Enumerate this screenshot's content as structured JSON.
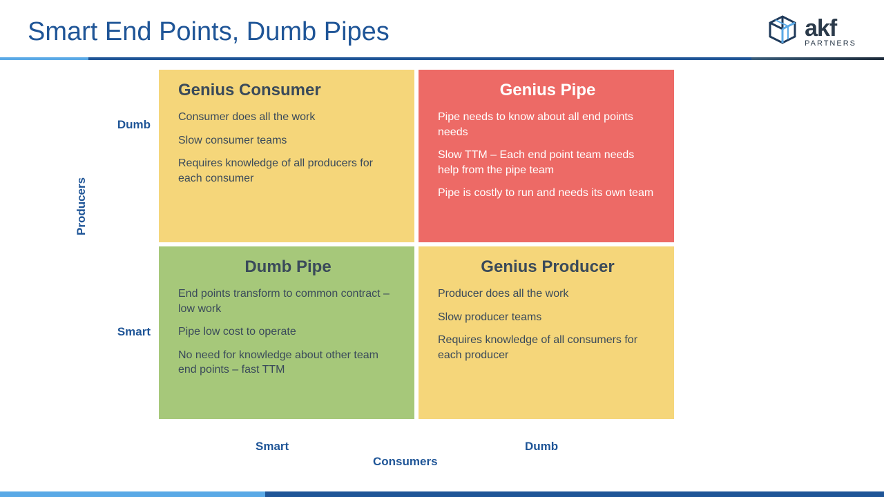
{
  "title": "Smart End Points, Dumb Pipes",
  "logo": {
    "main": "akf",
    "sub": "PARTNERS"
  },
  "axes": {
    "y_title": "Producers",
    "y_top": "Dumb",
    "y_bottom": "Smart",
    "x_title": "Consumers",
    "x_left": "Smart",
    "x_right": "Dumb"
  },
  "quadrants": {
    "top_left": {
      "title": "Genius Consumer",
      "bullets": [
        "Consumer does all the work",
        "Slow consumer teams",
        "Requires knowledge of all producers for each consumer"
      ],
      "bg": "#f5d67a",
      "title_color": "#3a4a5a",
      "text_color": "#3a4a5a",
      "title_align": "left"
    },
    "top_right": {
      "title": "Genius Pipe",
      "bullets": [
        "Pipe needs to know about all end points needs",
        "Slow TTM – Each end point team needs help from the pipe team",
        "Pipe is costly to run and needs its own team"
      ],
      "bg": "#ed6a66",
      "title_color": "#ffffff",
      "text_color": "#ffffff",
      "title_align": "center"
    },
    "bottom_left": {
      "title": "Dumb Pipe",
      "bullets": [
        "End points transform to common contract – low work",
        "Pipe low cost to operate",
        "No need for knowledge about other team end points – fast TTM"
      ],
      "bg": "#a6c87a",
      "title_color": "#3a4a5a",
      "text_color": "#3a4a5a",
      "title_align": "center"
    },
    "bottom_right": {
      "title": "Genius Producer",
      "bullets": [
        "Producer does all the work",
        "Slow producer teams",
        "Requires knowledge of all consumers for each producer"
      ],
      "bg": "#f5d67a",
      "title_color": "#3a4a5a",
      "text_color": "#3a4a5a",
      "title_align": "center"
    }
  },
  "colors": {
    "title": "#1f5597",
    "axis": "#1f5597",
    "divider_light": "#5aa9e6",
    "divider_main": "#1f5597"
  }
}
